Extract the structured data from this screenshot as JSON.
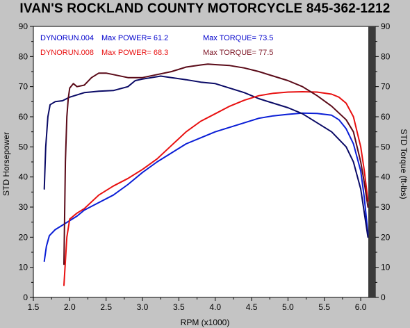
{
  "title": "IVAN'S ROCKLAND COUNTY MOTORCYCLE 845-362-1212",
  "chart_data": {
    "type": "line",
    "xlabel": "RPM (x1000)",
    "ylabel_left": "STD Horsepower",
    "ylabel_right": "STD Torque (ft-lbs)",
    "xlim": [
      1.5,
      6.2
    ],
    "ylim": [
      0,
      90
    ],
    "x_ticks": [
      "1.5",
      "2.0",
      "2.5",
      "3.0",
      "3.5",
      "4.0",
      "4.5",
      "5.0",
      "5.5",
      "6.0"
    ],
    "y_ticks": [
      "0",
      "10",
      "20",
      "30",
      "40",
      "50",
      "60",
      "70",
      "80",
      "90"
    ],
    "grid": false,
    "legend": [
      {
        "run": "DYNORUN.004",
        "power_label": "Max POWER= 61.2",
        "torque_label": "Max TORQUE= 73.5",
        "color": "#0000cc"
      },
      {
        "run": "DYNORUN.008",
        "power_label": "Max POWER= 68.3",
        "torque_label": "Max TORQUE= 77.5",
        "color": "#e81010"
      }
    ],
    "series": [
      {
        "key": "hp004",
        "color": "#0a1ed6",
        "x": [
          1.65,
          1.68,
          1.72,
          1.8,
          1.9,
          2.0,
          2.1,
          2.2,
          2.4,
          2.6,
          2.8,
          3.0,
          3.2,
          3.4,
          3.6,
          3.8,
          4.0,
          4.2,
          4.4,
          4.6,
          4.8,
          5.0,
          5.2,
          5.4,
          5.6,
          5.7,
          5.8,
          5.9,
          6.0,
          6.05,
          6.1
        ],
        "y": [
          12,
          17,
          20.5,
          22.5,
          24,
          25.5,
          27,
          29,
          31.5,
          34,
          37.5,
          41.5,
          45,
          48,
          51,
          53,
          55,
          56.5,
          58,
          59.5,
          60.3,
          60.8,
          61.2,
          61.1,
          60.5,
          59,
          56,
          51,
          42,
          33,
          21
        ]
      },
      {
        "key": "tq004",
        "color": "#0a0a66",
        "x": [
          1.65,
          1.67,
          1.7,
          1.73,
          1.8,
          1.9,
          2.0,
          2.2,
          2.4,
          2.6,
          2.8,
          2.9,
          3.0,
          3.2,
          3.25,
          3.4,
          3.6,
          3.8,
          4.0,
          4.2,
          4.4,
          4.6,
          4.8,
          5.0,
          5.2,
          5.4,
          5.6,
          5.8,
          5.9,
          6.0,
          6.05,
          6.1
        ],
        "y": [
          36,
          50,
          60,
          64,
          65,
          65.3,
          66.5,
          68,
          68.5,
          68.7,
          70,
          72,
          72.5,
          73.3,
          73.5,
          73,
          72.3,
          71.5,
          71,
          69.5,
          68,
          66,
          64.5,
          63,
          61,
          58,
          55,
          50,
          45,
          36,
          28,
          20
        ]
      },
      {
        "key": "hp008",
        "color": "#e81010",
        "x": [
          1.92,
          1.94,
          1.96,
          2.0,
          2.1,
          2.2,
          2.4,
          2.6,
          2.8,
          3.0,
          3.2,
          3.4,
          3.6,
          3.8,
          4.0,
          4.2,
          4.4,
          4.6,
          4.8,
          5.0,
          5.2,
          5.4,
          5.6,
          5.7,
          5.8,
          5.9,
          6.0,
          6.05,
          6.1
        ],
        "y": [
          4,
          12,
          20,
          26,
          28,
          29.5,
          34,
          37,
          39.5,
          42.5,
          46,
          50.5,
          55,
          58.5,
          61,
          63.5,
          65.5,
          67,
          67.8,
          68.2,
          68.3,
          68.2,
          67.5,
          66.5,
          64.5,
          60,
          50,
          42,
          32
        ]
      },
      {
        "key": "tq008",
        "color": "#5a0a18",
        "x": [
          1.92,
          1.94,
          1.96,
          1.98,
          2.0,
          2.05,
          2.1,
          2.2,
          2.3,
          2.4,
          2.5,
          2.6,
          2.8,
          3.0,
          3.2,
          3.4,
          3.6,
          3.8,
          3.9,
          4.0,
          4.2,
          4.4,
          4.6,
          4.8,
          5.0,
          5.2,
          5.4,
          5.6,
          5.8,
          5.9,
          6.0,
          6.05,
          6.1
        ],
        "y": [
          11,
          45,
          60,
          66,
          69.5,
          71,
          70,
          70.5,
          73,
          74.5,
          74.5,
          74,
          73,
          73,
          74,
          75,
          76.5,
          77.2,
          77.5,
          77.3,
          77,
          76.2,
          75,
          73.5,
          72,
          70,
          67,
          63.5,
          59,
          55,
          45,
          38,
          30
        ]
      }
    ]
  }
}
